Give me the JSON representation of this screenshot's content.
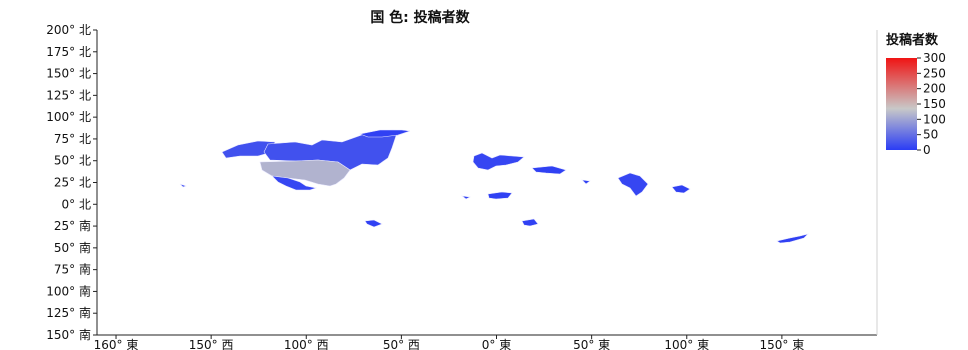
{
  "chart_data": {
    "type": "map",
    "title": "国 色: 投稿者数",
    "x_axis": {
      "ticks": [
        "160° 東",
        "150° 西",
        "100° 西",
        "50° 西",
        "0° 東",
        "50° 東",
        "100° 東",
        "150° 東"
      ],
      "tick_values": [
        -200,
        -150,
        -100,
        -50,
        0,
        50,
        100,
        150
      ]
    },
    "y_axis": {
      "ticks": [
        "200° 北",
        "175° 北",
        "150° 北",
        "125° 北",
        "100° 北",
        "75° 北",
        "50° 北",
        "25° 北",
        "0° 北",
        "25° 南",
        "50° 南",
        "75° 南",
        "100° 南",
        "125° 南",
        "150° 南"
      ],
      "tick_values": [
        200,
        175,
        150,
        125,
        100,
        75,
        50,
        25,
        0,
        -25,
        -50,
        -75,
        -100,
        -125,
        -150
      ]
    },
    "xlim": [
      -210,
      200
    ],
    "ylim": [
      -150,
      200
    ],
    "legend": {
      "title": "投稿者数",
      "ticks": [
        "300",
        "250",
        "200",
        "150",
        "100",
        "50",
        "0"
      ],
      "tick_values": [
        300,
        250,
        200,
        150,
        100,
        50,
        0
      ],
      "range": [
        0,
        300
      ],
      "colors": [
        "#2a3cf5",
        "#c8c8c8",
        "#f01414"
      ],
      "placement": "right"
    },
    "regions": [
      {
        "id": "usa",
        "value": 115
      },
      {
        "id": "canada",
        "value": 20
      },
      {
        "id": "alaska",
        "value": 20
      },
      {
        "id": "greenland",
        "value": 5
      },
      {
        "id": "mexico",
        "value": 10
      },
      {
        "id": "europe",
        "value": 10
      },
      {
        "id": "russia-west",
        "value": 5
      },
      {
        "id": "middle-east",
        "value": 5
      },
      {
        "id": "africa-west",
        "value": 5
      },
      {
        "id": "southern-africa",
        "value": 5
      },
      {
        "id": "brazil",
        "value": 5
      },
      {
        "id": "india",
        "value": 10
      },
      {
        "id": "japan",
        "value": 5
      },
      {
        "id": "se-asia",
        "value": 5
      },
      {
        "id": "new-zealand",
        "value": 5
      },
      {
        "id": "hawaii",
        "value": 5
      }
    ]
  }
}
